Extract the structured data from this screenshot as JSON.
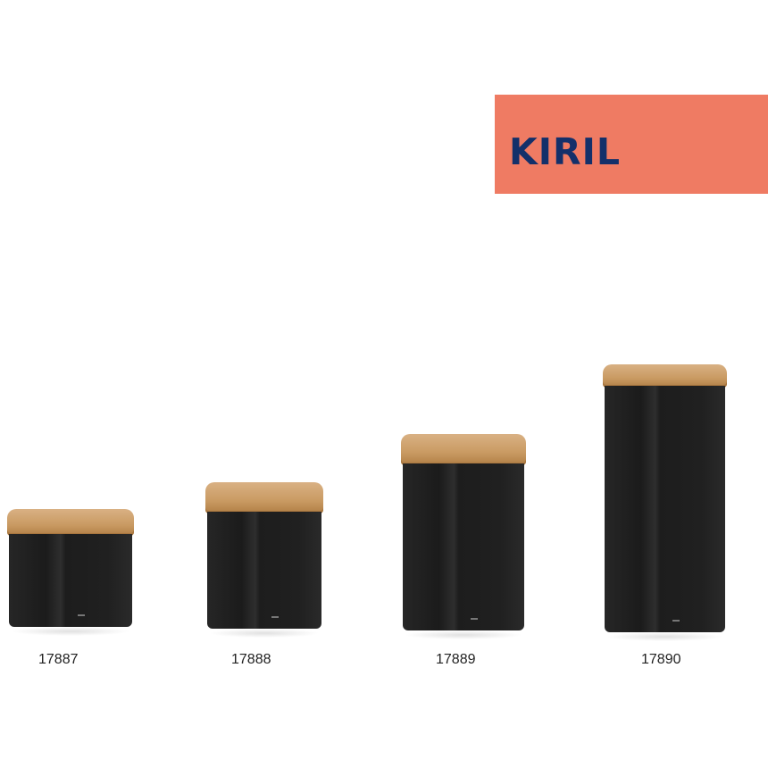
{
  "brand": {
    "title": "KIRIL",
    "banner_color": "#ef7b63",
    "text_color": "#14306a"
  },
  "products": [
    {
      "code": "17887"
    },
    {
      "code": "17888"
    },
    {
      "code": "17889"
    },
    {
      "code": "17890"
    }
  ]
}
